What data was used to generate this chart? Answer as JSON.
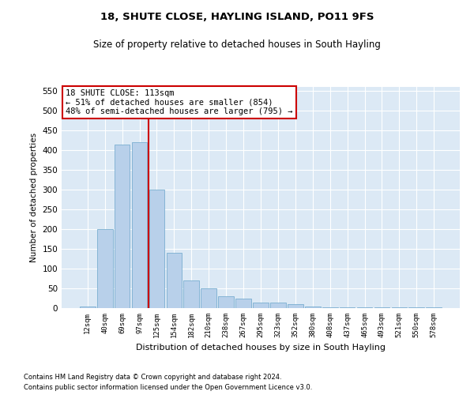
{
  "title": "18, SHUTE CLOSE, HAYLING ISLAND, PO11 9FS",
  "subtitle": "Size of property relative to detached houses in South Hayling",
  "xlabel": "Distribution of detached houses by size in South Hayling",
  "ylabel": "Number of detached properties",
  "footnote1": "Contains HM Land Registry data © Crown copyright and database right 2024.",
  "footnote2": "Contains public sector information licensed under the Open Government Licence v3.0.",
  "categories": [
    "12sqm",
    "40sqm",
    "69sqm",
    "97sqm",
    "125sqm",
    "154sqm",
    "182sqm",
    "210sqm",
    "238sqm",
    "267sqm",
    "295sqm",
    "323sqm",
    "352sqm",
    "380sqm",
    "408sqm",
    "437sqm",
    "465sqm",
    "493sqm",
    "521sqm",
    "550sqm",
    "578sqm"
  ],
  "values": [
    5,
    200,
    415,
    420,
    300,
    140,
    70,
    50,
    30,
    25,
    15,
    15,
    10,
    5,
    2,
    2,
    2,
    2,
    2,
    2,
    2
  ],
  "bar_color": "#b8d0ea",
  "bar_edge_color": "#7aaed0",
  "background_color": "#dce9f5",
  "grid_color": "#ffffff",
  "redline_x": 3.5,
  "annotation_line1": "18 SHUTE CLOSE: 113sqm",
  "annotation_line2": "← 51% of detached houses are smaller (854)",
  "annotation_line3": "48% of semi-detached houses are larger (795) →",
  "annotation_box_color": "#ffffff",
  "annotation_box_edge": "#cc0000",
  "ylim": [
    0,
    560
  ],
  "yticks": [
    0,
    50,
    100,
    150,
    200,
    250,
    300,
    350,
    400,
    450,
    500,
    550
  ]
}
